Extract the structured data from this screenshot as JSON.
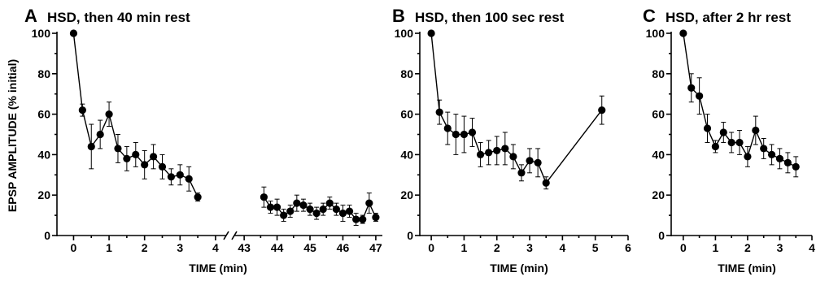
{
  "ylabel": "EPSP AMPLITUDE (% initial)",
  "chart_data": [
    {
      "type": "line",
      "panel": "A",
      "title": "HSD, then 40 min rest",
      "xlabel": "TIME (min)",
      "ylabel": "EPSP AMPLITUDE (% initial)",
      "ylim": [
        0,
        100
      ],
      "yticks": [
        "0",
        "20",
        "40",
        "60",
        "80",
        "100"
      ],
      "xaxis_break": true,
      "xticks_left": [
        "0",
        "1",
        "2",
        "3",
        "4"
      ],
      "xticks_right": [
        "43",
        "44",
        "45",
        "46",
        "47"
      ],
      "xlim_left": [
        -0.4,
        4.3
      ],
      "xlim_right": [
        42.7,
        47.2
      ],
      "segments": [
        {
          "x": [
            0,
            0.25,
            0.5,
            0.75,
            1.0,
            1.25,
            1.5,
            1.75,
            2.0,
            2.25,
            2.5,
            2.75,
            3.0,
            3.25,
            3.5
          ],
          "y": [
            100,
            62,
            44,
            50,
            60,
            43,
            38,
            40,
            35,
            39,
            34,
            29,
            30,
            28,
            19
          ],
          "err": [
            0,
            3,
            11,
            7,
            6,
            7,
            6,
            6,
            7,
            6,
            6,
            4,
            5,
            6,
            2
          ]
        },
        {
          "x": [
            43.6,
            43.8,
            44.0,
            44.2,
            44.4,
            44.6,
            44.8,
            45.0,
            45.2,
            45.4,
            45.6,
            45.8,
            46.0,
            46.2,
            46.4,
            46.6,
            46.8,
            47.0
          ],
          "y": [
            19,
            14,
            14,
            10,
            12,
            16,
            15,
            13,
            11,
            13,
            16,
            13,
            11,
            12,
            8,
            8,
            16,
            9
          ],
          "err": [
            5,
            3,
            4,
            3,
            3,
            4,
            3,
            3,
            3,
            3,
            3,
            3,
            4,
            3,
            3,
            2,
            5,
            2
          ]
        }
      ]
    },
    {
      "type": "line",
      "panel": "B",
      "title": "HSD, then 100 sec rest",
      "xlabel": "TIME (min)",
      "ylim": [
        0,
        100
      ],
      "yticks": [
        "0",
        "20",
        "40",
        "60",
        "80",
        "100"
      ],
      "xticks": [
        "0",
        "1",
        "2",
        "3",
        "4",
        "5",
        "6"
      ],
      "xlim": [
        -0.3,
        6.0
      ],
      "x": [
        0,
        0.25,
        0.5,
        0.75,
        1.0,
        1.25,
        1.5,
        1.75,
        2.0,
        2.25,
        2.5,
        2.75,
        3.0,
        3.25,
        3.5,
        5.2
      ],
      "y": [
        100,
        61,
        53,
        50,
        50,
        51,
        40,
        41,
        42,
        43,
        39,
        31,
        37,
        36,
        26,
        62
      ],
      "err": [
        0,
        6,
        8,
        10,
        9,
        7,
        6,
        6,
        7,
        8,
        6,
        4,
        6,
        7,
        3,
        7
      ]
    },
    {
      "type": "line",
      "panel": "C",
      "title": "HSD, after 2 hr rest",
      "xlabel": "TIME (min)",
      "ylim": [
        0,
        100
      ],
      "yticks": [
        "0",
        "20",
        "40",
        "60",
        "80",
        "100"
      ],
      "xticks": [
        "0",
        "1",
        "2",
        "3",
        "4"
      ],
      "xlim": [
        -0.3,
        4.0
      ],
      "x": [
        0,
        0.25,
        0.5,
        0.75,
        1.0,
        1.25,
        1.5,
        1.75,
        2.0,
        2.25,
        2.5,
        2.75,
        3.0,
        3.25,
        3.5
      ],
      "y": [
        100,
        73,
        69,
        53,
        44,
        51,
        46,
        46,
        39,
        52,
        43,
        40,
        38,
        36,
        34
      ],
      "err": [
        0,
        7,
        9,
        7,
        3,
        5,
        5,
        6,
        5,
        7,
        5,
        5,
        5,
        5,
        5
      ]
    }
  ]
}
